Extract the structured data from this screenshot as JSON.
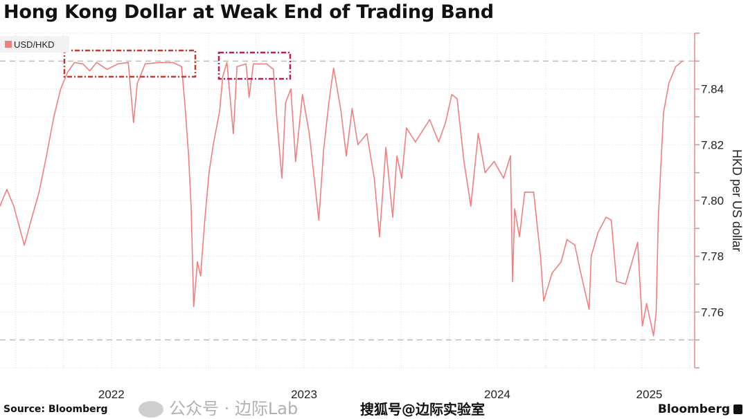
{
  "title": "Hong Kong Dollar at Weak End of Trading Band",
  "source": "Source: Bloomberg",
  "brand": "Bloomberg",
  "watermarks": [
    "公众号 · 边际Lab",
    "搜狐号@边际实验室"
  ],
  "colors": {
    "series": "#ef7f7f",
    "axis": "#e58a8a",
    "box1": "#c0392b",
    "box2": "#c2185b",
    "reference": "#bdbdbd"
  },
  "chart_data": {
    "type": "line",
    "title": "Hong Kong Dollar at Weak End of Trading Band",
    "ylabel": "HKD per US dollar",
    "xlabel": "",
    "xlim": [
      "2021-12-02",
      "2025-07-10"
    ],
    "ylim": [
      7.74,
      7.86
    ],
    "y_axis_side": "right",
    "yticks": [
      7.76,
      7.78,
      7.8,
      7.82,
      7.84
    ],
    "xtick_labels": [
      {
        "label": "2022",
        "date": "2022-07-01"
      },
      {
        "label": "2023",
        "date": "2023-07-01"
      },
      {
        "label": "2024",
        "date": "2024-07-01"
      },
      {
        "label": "2025",
        "date": "2025-04-15"
      }
    ],
    "grid": true,
    "legend": {
      "position": "top-left",
      "entries": [
        "USD/HKD"
      ]
    },
    "reference_lines": [
      7.85,
      7.75
    ],
    "series": [
      {
        "name": "USD/HKD",
        "points": [
          [
            "2021-12-02",
            7.798
          ],
          [
            "2021-12-15",
            7.804
          ],
          [
            "2021-12-28",
            7.798
          ],
          [
            "2022-01-17",
            7.784
          ],
          [
            "2022-01-30",
            7.793
          ],
          [
            "2022-02-14",
            7.803
          ],
          [
            "2022-02-28",
            7.816
          ],
          [
            "2022-03-14",
            7.83
          ],
          [
            "2022-03-27",
            7.84
          ],
          [
            "2022-04-09",
            7.846
          ],
          [
            "2022-04-22",
            7.8495
          ],
          [
            "2022-05-08",
            7.849
          ],
          [
            "2022-05-21",
            7.8465
          ],
          [
            "2022-06-03",
            7.8495
          ],
          [
            "2022-06-23",
            7.847
          ],
          [
            "2022-07-13",
            7.849
          ],
          [
            "2022-08-02",
            7.8495
          ],
          [
            "2022-08-12",
            7.828
          ],
          [
            "2022-08-19",
            7.842
          ],
          [
            "2022-09-03",
            7.849
          ],
          [
            "2022-09-30",
            7.8495
          ],
          [
            "2022-10-26",
            7.8495
          ],
          [
            "2022-11-11",
            7.848
          ],
          [
            "2022-11-17",
            7.835
          ],
          [
            "2022-11-24",
            7.817
          ],
          [
            "2022-11-29",
            7.798
          ],
          [
            "2022-12-04",
            7.762
          ],
          [
            "2022-12-11",
            7.778
          ],
          [
            "2022-12-17",
            7.773
          ],
          [
            "2022-12-25",
            7.793
          ],
          [
            "2023-01-02",
            7.81
          ],
          [
            "2023-01-10",
            7.82
          ],
          [
            "2023-01-22",
            7.832
          ],
          [
            "2023-01-28",
            7.8445
          ],
          [
            "2023-02-05",
            7.8495
          ],
          [
            "2023-02-17",
            7.824
          ],
          [
            "2023-02-24",
            7.848
          ],
          [
            "2023-03-13",
            7.849
          ],
          [
            "2023-03-19",
            7.837
          ],
          [
            "2023-03-27",
            7.849
          ],
          [
            "2023-04-21",
            7.849
          ],
          [
            "2023-05-04",
            7.847
          ],
          [
            "2023-05-11",
            7.828
          ],
          [
            "2023-05-20",
            7.808
          ],
          [
            "2023-05-27",
            7.835
          ],
          [
            "2023-06-06",
            7.84
          ],
          [
            "2023-06-15",
            7.814
          ],
          [
            "2023-06-28",
            7.838
          ],
          [
            "2023-07-11",
            7.824
          ],
          [
            "2023-07-29",
            7.793
          ],
          [
            "2023-08-07",
            7.818
          ],
          [
            "2023-08-17",
            7.835
          ],
          [
            "2023-08-26",
            7.8475
          ],
          [
            "2023-09-09",
            7.832
          ],
          [
            "2023-09-19",
            7.816
          ],
          [
            "2023-09-30",
            7.833
          ],
          [
            "2023-10-11",
            7.82
          ],
          [
            "2023-10-28",
            7.824
          ],
          [
            "2023-11-11",
            7.808
          ],
          [
            "2023-11-21",
            7.787
          ],
          [
            "2023-12-03",
            7.819
          ],
          [
            "2023-12-16",
            7.794
          ],
          [
            "2023-12-24",
            7.816
          ],
          [
            "2024-01-02",
            7.808
          ],
          [
            "2024-01-11",
            7.826
          ],
          [
            "2024-01-28",
            7.821
          ],
          [
            "2024-02-24",
            7.829
          ],
          [
            "2024-03-12",
            7.821
          ],
          [
            "2024-03-25",
            7.828
          ],
          [
            "2024-04-06",
            7.838
          ],
          [
            "2024-04-16",
            7.8365
          ],
          [
            "2024-04-29",
            7.814
          ],
          [
            "2024-05-12",
            7.798
          ],
          [
            "2024-05-26",
            7.824
          ],
          [
            "2024-06-08",
            7.81
          ],
          [
            "2024-06-25",
            7.814
          ],
          [
            "2024-07-13",
            7.808
          ],
          [
            "2024-07-26",
            7.816
          ],
          [
            "2024-07-30",
            7.771
          ],
          [
            "2024-08-03",
            7.797
          ],
          [
            "2024-08-12",
            7.787
          ],
          [
            "2024-08-22",
            7.803
          ],
          [
            "2024-09-08",
            7.803
          ],
          [
            "2024-09-21",
            7.78
          ],
          [
            "2024-09-27",
            7.764
          ],
          [
            "2024-10-13",
            7.774
          ],
          [
            "2024-10-30",
            7.778
          ],
          [
            "2024-11-10",
            7.786
          ],
          [
            "2024-11-25",
            7.784
          ],
          [
            "2024-12-05",
            7.775
          ],
          [
            "2024-12-22",
            7.761
          ],
          [
            "2024-12-26",
            7.78
          ],
          [
            "2025-01-08",
            7.7885
          ],
          [
            "2025-01-23",
            7.794
          ],
          [
            "2025-02-02",
            7.793
          ],
          [
            "2025-02-12",
            7.771
          ],
          [
            "2025-03-01",
            7.77
          ],
          [
            "2025-03-24",
            7.785
          ],
          [
            "2025-04-02",
            7.755
          ],
          [
            "2025-04-10",
            7.763
          ],
          [
            "2025-04-23",
            7.7515
          ],
          [
            "2025-04-28",
            7.76
          ],
          [
            "2025-05-02",
            7.793
          ],
          [
            "2025-05-06",
            7.809
          ],
          [
            "2025-05-12",
            7.8315
          ],
          [
            "2025-05-22",
            7.842
          ],
          [
            "2025-06-04",
            7.848
          ],
          [
            "2025-06-17",
            7.85
          ]
        ]
      }
    ]
  }
}
